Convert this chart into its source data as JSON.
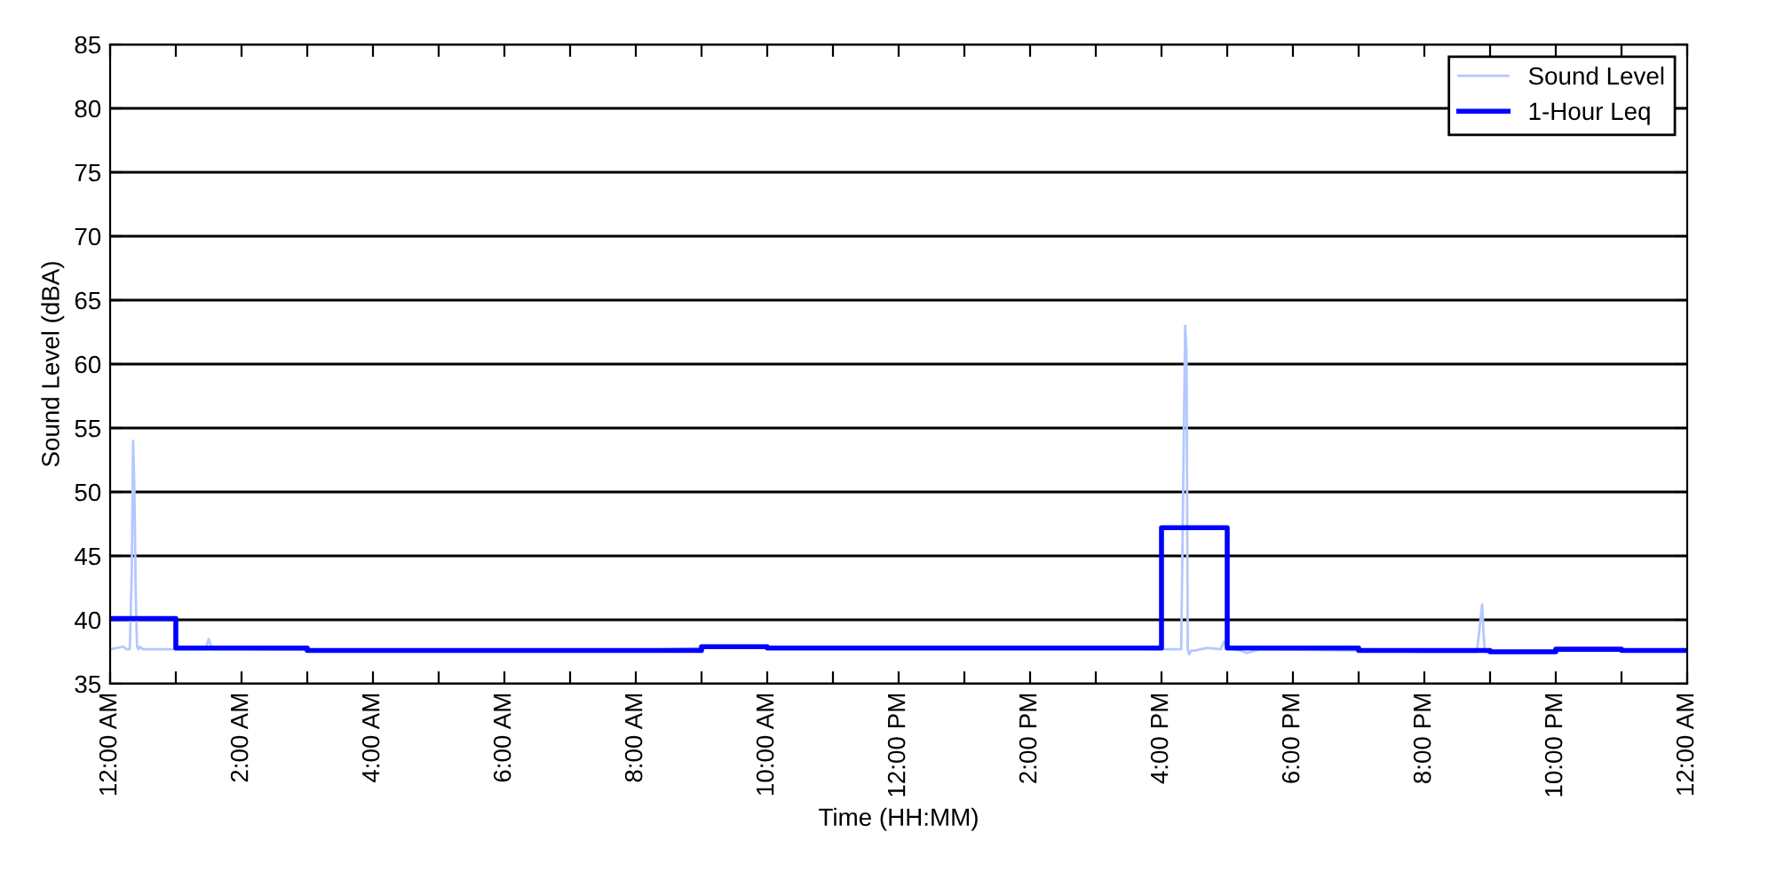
{
  "chart_data": {
    "type": "line",
    "xlabel": "Time (HH:MM)",
    "ylabel": "Sound Level (dBA)",
    "xlim": [
      0,
      24
    ],
    "ylim": [
      35,
      85
    ],
    "xticks": [
      {
        "value": 0,
        "label": "12:00 AM"
      },
      {
        "value": 1,
        "label": null
      },
      {
        "value": 2,
        "label": "2:00 AM"
      },
      {
        "value": 3,
        "label": null
      },
      {
        "value": 4,
        "label": "4:00 AM"
      },
      {
        "value": 5,
        "label": null
      },
      {
        "value": 6,
        "label": "6:00 AM"
      },
      {
        "value": 7,
        "label": null
      },
      {
        "value": 8,
        "label": "8:00 AM"
      },
      {
        "value": 9,
        "label": null
      },
      {
        "value": 10,
        "label": "10:00 AM"
      },
      {
        "value": 11,
        "label": null
      },
      {
        "value": 12,
        "label": "12:00 PM"
      },
      {
        "value": 13,
        "label": null
      },
      {
        "value": 14,
        "label": "2:00 PM"
      },
      {
        "value": 15,
        "label": null
      },
      {
        "value": 16,
        "label": "4:00 PM"
      },
      {
        "value": 17,
        "label": null
      },
      {
        "value": 18,
        "label": "6:00 PM"
      },
      {
        "value": 19,
        "label": null
      },
      {
        "value": 20,
        "label": "8:00 PM"
      },
      {
        "value": 21,
        "label": null
      },
      {
        "value": 22,
        "label": "10:00 PM"
      },
      {
        "value": 23,
        "label": null
      },
      {
        "value": 24,
        "label": "12:00 AM"
      }
    ],
    "yticks": [
      35,
      40,
      45,
      50,
      55,
      60,
      65,
      70,
      75,
      80,
      85
    ],
    "grid": "y",
    "legend": "top right",
    "marker": "none",
    "series": [
      {
        "name": "Sound Level",
        "color": "#b4c8ff",
        "x": [
          0,
          0.2,
          0.25,
          0.3,
          0.33,
          0.35,
          0.37,
          0.39,
          0.41,
          0.43,
          0.45,
          0.5,
          0.6,
          1.0,
          1.45,
          1.5,
          1.55,
          2.0,
          4.0,
          6.0,
          8.0,
          9.0,
          12.0,
          15.0,
          16.0,
          16.3,
          16.36,
          16.38,
          16.4,
          16.42,
          16.45,
          16.5,
          16.7,
          16.9,
          16.95,
          17.0,
          17.2,
          17.3,
          17.5,
          19.0,
          20.0,
          20.8,
          20.88,
          20.9,
          20.92,
          21.0,
          22.0,
          23.0,
          24.0
        ],
        "values": [
          37.7,
          37.9,
          37.7,
          37.7,
          44,
          54,
          50,
          42,
          37.9,
          37.7,
          37.9,
          37.7,
          37.7,
          37.7,
          37.7,
          38.5,
          37.7,
          37.7,
          37.6,
          37.6,
          37.6,
          37.8,
          37.8,
          37.8,
          37.7,
          37.7,
          63,
          61,
          37.7,
          37.3,
          37.6,
          37.6,
          37.8,
          37.7,
          38.3,
          37.8,
          37.6,
          37.4,
          37.7,
          37.6,
          37.5,
          37.5,
          41.2,
          39,
          37.5,
          37.5,
          37.6,
          37.6,
          37.6
        ]
      },
      {
        "name": "1-Hour Leq",
        "color": "#0000ff",
        "type": "step",
        "x": [
          0,
          1,
          2,
          3,
          4,
          5,
          6,
          7,
          8,
          9,
          10,
          11,
          12,
          13,
          14,
          15,
          16,
          17,
          18,
          19,
          20,
          21,
          22,
          23,
          24
        ],
        "values": [
          40.1,
          37.8,
          37.8,
          37.6,
          37.6,
          37.6,
          37.6,
          37.6,
          37.6,
          37.9,
          37.8,
          37.8,
          37.8,
          37.8,
          37.8,
          37.8,
          47.2,
          37.8,
          37.8,
          37.6,
          37.6,
          37.5,
          37.7,
          37.6,
          37.6
        ]
      }
    ]
  }
}
